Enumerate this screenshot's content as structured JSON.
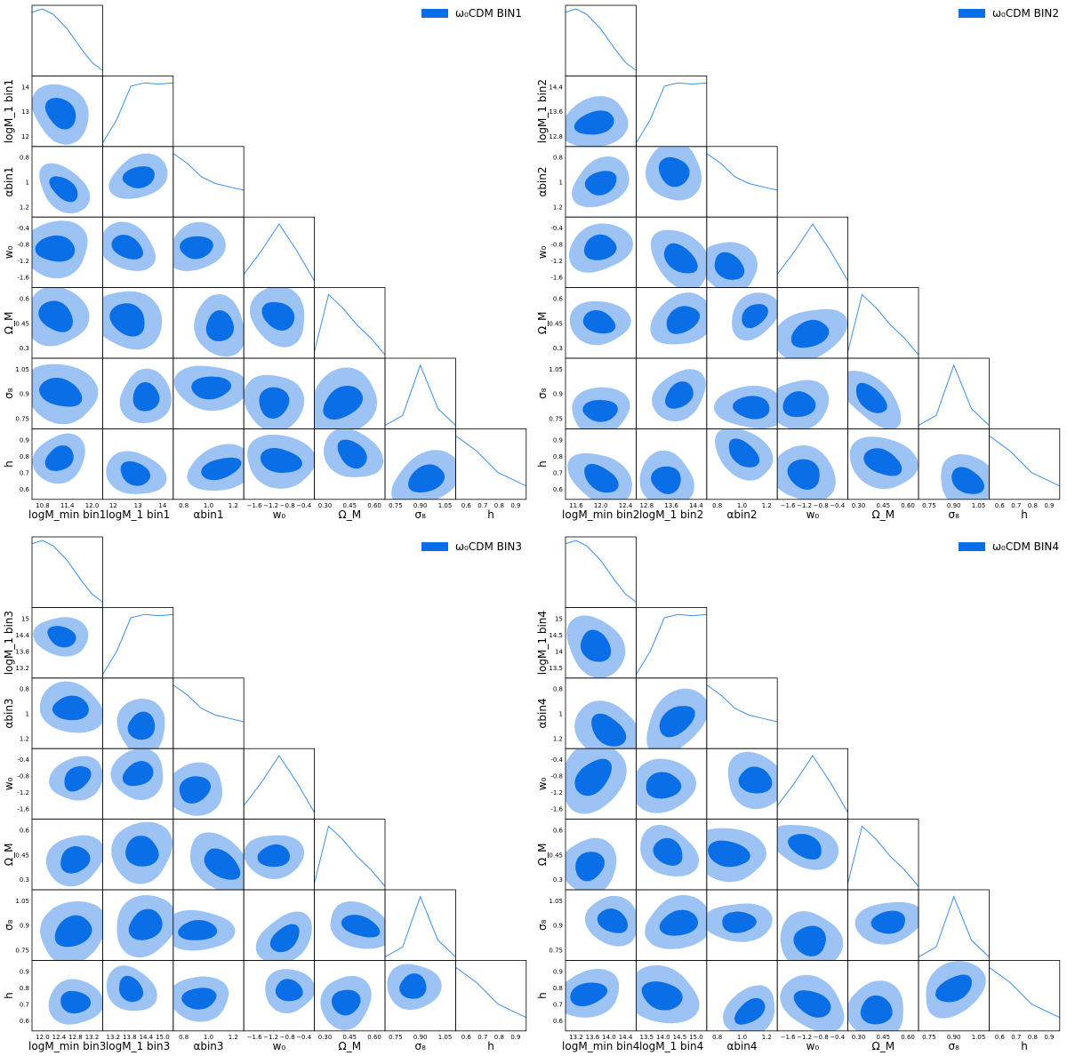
{
  "colors": {
    "inner": "#0a6fe6",
    "outer": "#9cc3f3",
    "curve": "#3a8ee6",
    "axis": "#000000"
  },
  "chart_data": [
    {
      "type": "corner",
      "legend": "ω₀CDM BIN1",
      "labels": {
        "logMmin": "logM_min bin1",
        "logM1": "logM_1 bin1",
        "alpha": "αbin1",
        "w0": "w₀",
        "OmegaM": "Ω_M",
        "sigma8": "σ₈",
        "h": "h"
      },
      "ticks": {
        "logMmin": [
          "10.8",
          "11.4",
          "12.0"
        ],
        "logM1": [
          "12",
          "13",
          "14"
        ],
        "alpha": [
          "0.8",
          "1",
          "1.2"
        ],
        "alpha_x": [
          "0.8",
          "1.0",
          "1.2"
        ],
        "w0": [
          "-0.4",
          "-0.8",
          "-1.2",
          "-1.6"
        ],
        "w0_x": [
          "−1.6",
          "−1.2",
          "−0.8",
          "−0.4"
        ],
        "OmegaM": [
          "0.6",
          "0.45",
          "0.3"
        ],
        "OmegaM_x": [
          "0.30",
          "0.45",
          "0.60"
        ],
        "sigma8": [
          "1.05",
          "0.9",
          "0.75"
        ],
        "sigma8_x": [
          "0.75",
          "0.90",
          "1.05"
        ],
        "h": [
          "0.9",
          "0.8",
          "0.7",
          "0.6"
        ],
        "h_x": [
          "0.6",
          "0.7",
          "0.8",
          "0.9"
        ],
        "logM1_y": [
          "14",
          "13",
          "12"
        ]
      }
    },
    {
      "type": "corner",
      "legend": "ω₀CDM BIN2",
      "labels": {
        "logMmin": "logM_min bin2",
        "logM1": "logM_1 bin2",
        "alpha": "αbin2",
        "w0": "w₀",
        "OmegaM": "Ω_M",
        "sigma8": "σ₈",
        "h": "h"
      },
      "ticks": {
        "logMmin": [
          "11.6",
          "12.0",
          "12.4"
        ],
        "logM1": [
          "12.8",
          "13.6",
          "14.4"
        ],
        "alpha": [
          "0.8",
          "1",
          "1.2"
        ],
        "alpha_x": [
          "0.8",
          "1.0",
          "1.2"
        ],
        "w0": [
          "-0.4",
          "-0.8",
          "-1.2",
          "-1.6"
        ],
        "w0_x": [
          "−1.6",
          "−1.2",
          "−0.8",
          "−0.4"
        ],
        "OmegaM": [
          "0.6",
          "0.45",
          "0.3"
        ],
        "OmegaM_x": [
          "0.30",
          "0.45",
          "0.60"
        ],
        "sigma8": [
          "1.05",
          "0.9",
          "0.75"
        ],
        "sigma8_x": [
          "0.75",
          "0.90",
          "1.05"
        ],
        "h": [
          "0.9",
          "0.8",
          "0.7",
          "0.6"
        ],
        "h_x": [
          "0.6",
          "0.7",
          "0.8",
          "0.9"
        ],
        "logM1_y": [
          "14.4",
          "13.6",
          "12.8"
        ]
      }
    },
    {
      "type": "corner",
      "legend": "ω₀CDM BIN3",
      "labels": {
        "logMmin": "logM_min bin3",
        "logM1": "logM_1 bin3",
        "alpha": "αbin3",
        "w0": "w₀",
        "OmegaM": "Ω_M",
        "sigma8": "σ₈",
        "h": "h"
      },
      "ticks": {
        "logMmin": [
          "12.0",
          "12.4",
          "12.8",
          "13.2"
        ],
        "logM1": [
          "13.2",
          "13.8",
          "14.4",
          "15.0"
        ],
        "alpha": [
          "0.8",
          "1",
          "1.2"
        ],
        "alpha_x": [
          "0.8",
          "1.0",
          "1.2"
        ],
        "w0": [
          "-0.4",
          "-0.8",
          "-1.2",
          "-1.6"
        ],
        "w0_x": [
          "−1.6",
          "−1.2",
          "−0.8",
          "−0.4"
        ],
        "OmegaM": [
          "0.6",
          "0.45",
          "0.3"
        ],
        "OmegaM_x": [
          "0.30",
          "0.45",
          "0.60"
        ],
        "sigma8": [
          "1.05",
          "0.9",
          "0.75"
        ],
        "sigma8_x": [
          "0.75",
          "0.90",
          "1.05"
        ],
        "h": [
          "0.9",
          "0.8",
          "0.7",
          "0.6"
        ],
        "h_x": [
          "0.6",
          "0.7",
          "0.8",
          "0.9"
        ],
        "logM1_y": [
          "15",
          "14.4",
          "13.8",
          "13.2"
        ]
      }
    },
    {
      "type": "corner",
      "legend": "ω₀CDM BIN4",
      "labels": {
        "logMmin": "logM_min bin4",
        "logM1": "logM_1 bin4",
        "alpha": "αbin4",
        "w0": "w₀",
        "OmegaM": "Ω_M",
        "sigma8": "σ₈",
        "h": "h"
      },
      "ticks": {
        "logMmin": [
          "13.2",
          "13.6",
          "14.0",
          "14.4"
        ],
        "logM1": [
          "13.5",
          "14.0",
          "14.5",
          "15.0"
        ],
        "alpha": [
          "0.8",
          "1",
          "1.2"
        ],
        "alpha_x": [
          "0.8",
          "1.0",
          "1.2"
        ],
        "w0": [
          "-0.4",
          "-0.8",
          "-1.2",
          "-1.6"
        ],
        "w0_x": [
          "−1.6",
          "−1.2",
          "−0.8",
          "−0.4"
        ],
        "OmegaM": [
          "0.6",
          "0.45",
          "0.3"
        ],
        "OmegaM_x": [
          "0.30",
          "0.45",
          "0.60"
        ],
        "sigma8": [
          "1.05",
          "0.9",
          "0.75"
        ],
        "sigma8_x": [
          "0.75",
          "0.90",
          "1.05"
        ],
        "h": [
          "0.9",
          "0.8",
          "0.7",
          "0.6"
        ],
        "h_x": [
          "0.6",
          "0.7",
          "0.8",
          "0.9"
        ],
        "logM1_y": [
          "15",
          "14.5",
          "14",
          "13.5"
        ]
      }
    }
  ]
}
